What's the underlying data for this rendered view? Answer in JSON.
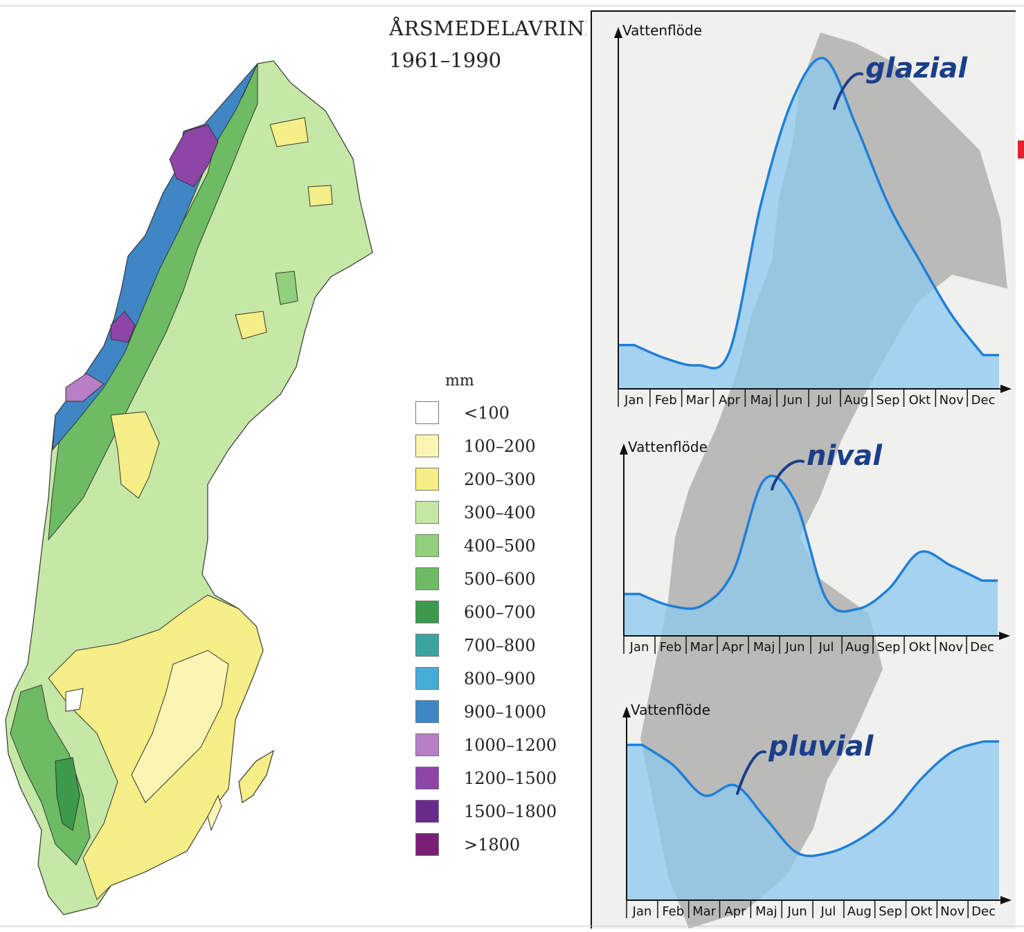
{
  "map": {
    "title": "ÅRSMEDELAVRINNING",
    "period": "1961–1990",
    "legend_unit": "mm",
    "legend": [
      {
        "label": "<100",
        "color": "#ffffff"
      },
      {
        "label": "100–200",
        "color": "#fbf5b4"
      },
      {
        "label": "200–300",
        "color": "#f6ee86"
      },
      {
        "label": "300–400",
        "color": "#c6e8a6"
      },
      {
        "label": "400–500",
        "color": "#93d07e"
      },
      {
        "label": "500–600",
        "color": "#6dbc63"
      },
      {
        "label": "600–700",
        "color": "#3b9b4a"
      },
      {
        "label": "700–800",
        "color": "#3aa5a0"
      },
      {
        "label": "800–900",
        "color": "#46acd8"
      },
      {
        "label": "900–1000",
        "color": "#3f86c4"
      },
      {
        "label": "1000–1200",
        "color": "#b77fc6"
      },
      {
        "label": "1200–1500",
        "color": "#8d45a8"
      },
      {
        "label": "1500–1800",
        "color": "#6a2a8c"
      },
      {
        "label": ">1800",
        "color": "#7a1e78"
      }
    ]
  },
  "chart_data": [
    {
      "type": "area",
      "ylabel": "Vattenflöde",
      "annotation": "glazial",
      "categories": [
        "Jan",
        "Feb",
        "Mar",
        "Apr",
        "Maj",
        "Jun",
        "Jul",
        "Aug",
        "Sep",
        "Okt",
        "Nov",
        "Dec"
      ],
      "values": [
        13,
        9,
        7,
        11,
        55,
        86,
        98,
        78,
        55,
        38,
        22,
        10
      ],
      "ylim": [
        0,
        100
      ],
      "fill_color": "#8cc8ee",
      "line_color": "#1f7fd6"
    },
    {
      "type": "area",
      "ylabel": "Vattenflöde",
      "annotation": "nival",
      "categories": [
        "Jan",
        "Feb",
        "Mar",
        "Apr",
        "Maj",
        "Jun",
        "Jul",
        "Aug",
        "Sep",
        "Okt",
        "Nov",
        "Dec"
      ],
      "values": [
        25,
        18,
        18,
        38,
        93,
        80,
        22,
        16,
        28,
        50,
        42,
        33
      ],
      "ylim": [
        0,
        100
      ],
      "fill_color": "#8cc8ee",
      "line_color": "#1f7fd6"
    },
    {
      "type": "area",
      "ylabel": "Vattenflöde",
      "annotation": "pluvial",
      "categories": [
        "Jan",
        "Feb",
        "Mar",
        "Apr",
        "Maj",
        "Jun",
        "Jul",
        "Aug",
        "Sep",
        "Okt",
        "Nov",
        "Dec"
      ],
      "values": [
        92,
        80,
        62,
        68,
        48,
        28,
        28,
        36,
        50,
        72,
        88,
        94
      ],
      "ylim": [
        0,
        100
      ],
      "fill_color": "#8cc8ee",
      "line_color": "#1f7fd6"
    }
  ]
}
